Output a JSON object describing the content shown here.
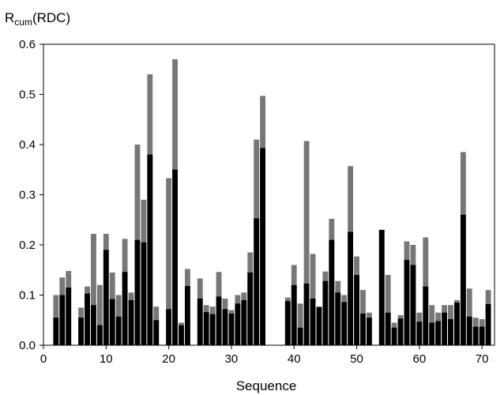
{
  "chart_data": {
    "type": "bar",
    "title": "",
    "ylabel_main": "R",
    "ylabel_sub": "cum",
    "ylabel_suffix": "(RDC)",
    "xlabel": "Sequence",
    "xlim": [
      0,
      72
    ],
    "ylim": [
      0,
      0.6
    ],
    "xticks": [
      0,
      10,
      20,
      30,
      40,
      50,
      60,
      70
    ],
    "yticks": [
      0.0,
      0.1,
      0.2,
      0.3,
      0.4,
      0.5,
      0.6
    ],
    "ytick_labels": [
      "0.0",
      "0.1",
      "0.2",
      "0.3",
      "0.4",
      "0.5",
      "0.6"
    ],
    "grid": false,
    "colors": {
      "gray_series": "#777777",
      "black_series": "#000000"
    },
    "x": [
      2,
      3,
      4,
      6,
      7,
      8,
      9,
      10,
      11,
      12,
      13,
      14,
      15,
      16,
      17,
      18,
      20,
      21,
      22,
      23,
      25,
      26,
      27,
      28,
      29,
      30,
      31,
      32,
      33,
      34,
      35,
      39,
      40,
      41,
      42,
      43,
      44,
      45,
      46,
      47,
      48,
      49,
      50,
      51,
      52,
      54,
      55,
      56,
      57,
      58,
      59,
      60,
      61,
      62,
      63,
      64,
      65,
      66,
      67,
      68,
      69,
      70,
      71
    ],
    "series": [
      {
        "values": [
          0.1,
          0.135,
          0.148,
          0.075,
          0.117,
          0.222,
          0.12,
          0.222,
          0.145,
          0.1,
          0.212,
          0.105,
          0.4,
          0.29,
          0.54,
          0.077,
          0.333,
          0.57,
          0.045,
          0.152,
          0.133,
          0.08,
          0.077,
          0.146,
          0.093,
          0.07,
          0.1,
          0.105,
          0.185,
          0.41,
          0.497,
          0.095,
          0.16,
          0.083,
          0.407,
          0.182,
          0.077,
          0.147,
          0.252,
          0.128,
          0.1,
          0.357,
          0.177,
          0.11,
          0.065,
          0.23,
          0.14,
          0.045,
          0.06,
          0.207,
          0.2,
          0.065,
          0.215,
          0.08,
          0.065,
          0.08,
          0.08,
          0.09,
          0.385,
          0.113,
          0.055,
          0.052,
          0.11
        ]
      },
      {
        "values": [
          0.055,
          0.1,
          0.115,
          0.055,
          0.103,
          0.08,
          0.04,
          0.19,
          0.092,
          0.057,
          0.146,
          0.09,
          0.21,
          0.205,
          0.38,
          0.05,
          0.072,
          0.35,
          0.04,
          0.118,
          0.093,
          0.066,
          0.062,
          0.097,
          0.072,
          0.063,
          0.083,
          0.09,
          0.145,
          0.253,
          0.393,
          0.088,
          0.12,
          0.035,
          0.123,
          0.093,
          0.076,
          0.128,
          0.21,
          0.105,
          0.086,
          0.226,
          0.14,
          0.063,
          0.055,
          0.23,
          0.065,
          0.035,
          0.053,
          0.17,
          0.16,
          0.047,
          0.117,
          0.045,
          0.048,
          0.065,
          0.052,
          0.085,
          0.26,
          0.057,
          0.037,
          0.037,
          0.082
        ]
      }
    ]
  }
}
